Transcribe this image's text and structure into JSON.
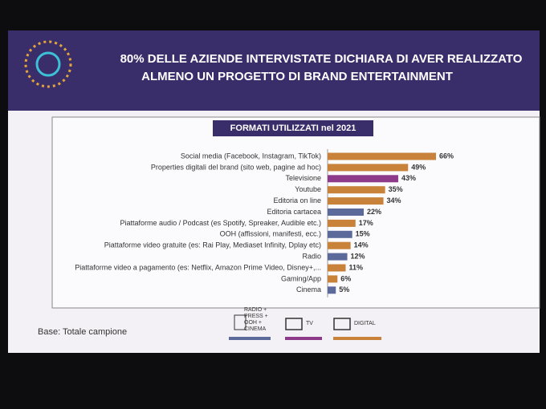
{
  "chart_data": {
    "type": "bar",
    "title": [
      "80% DELLE AZIENDE INTERVISTATE DICHIARA DI AVER REALIZZATO",
      "ALMENO UN PROGETTO DI BRAND ENTERTAINMENT"
    ],
    "subtitle": "FORMATI UTILIZZATI nel 2021",
    "categories": [
      "Social media (Facebook, Instagram, TikTok)",
      "Properties digitali del brand (sito web, pagine ad hoc)",
      "Televisione",
      "Youtube",
      "Editoria on line",
      "Editoria cartacea",
      "Piattaforme audio / Podcast (es Spotify, Spreaker, Audible etc.)",
      "OOH (affissioni, manifesti, ecc.)",
      "Piattaforme video gratuite (es: Rai Play, Mediaset Infinity, Dplay etc)",
      "Radio",
      "Piattaforme video a pagamento (es: Netflix, Amazon Prime Video, Disney+,...",
      "Gaming/App",
      "Cinema"
    ],
    "values": [
      66,
      49,
      43,
      35,
      34,
      22,
      17,
      15,
      14,
      12,
      11,
      6,
      5
    ],
    "value_labels": [
      "66%",
      "49%",
      "43%",
      "35%",
      "34%",
      "22%",
      "17%",
      "15%",
      "14%",
      "12%",
      "11%",
      "6%",
      "5%"
    ],
    "bar_colors": [
      "#c8823a",
      "#c8823a",
      "#8e3a8a",
      "#c8823a",
      "#c8823a",
      "#5b6a9a",
      "#c8823a",
      "#5b6a9a",
      "#c8823a",
      "#5b6a9a",
      "#c8823a",
      "#c8823a",
      "#5b6a9a"
    ],
    "legend": [
      {
        "name": "RADIO + PRESS + OOH + CINEMA",
        "color": "#5b6a9a"
      },
      {
        "name": "TV",
        "color": "#8e3a8a"
      },
      {
        "name": "DIGITAL",
        "color": "#c8823a"
      }
    ],
    "note": "Base: Totale campione"
  }
}
